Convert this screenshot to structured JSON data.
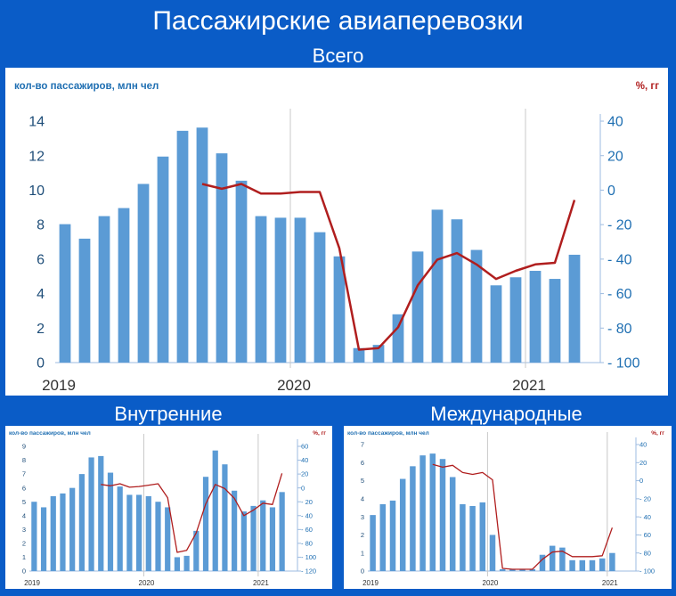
{
  "page": {
    "title": "Пассажирские авиаперевозки",
    "sections": {
      "total": "Всего",
      "domestic": "Внутренние",
      "international": "Международные"
    }
  },
  "colors": {
    "background": "#0a5cc7",
    "bar": "#5b9bd5",
    "line": "#b01e1e",
    "axis_text_left": "#1f4e79",
    "axis_text_right": "#1f6fb2"
  },
  "chart_data": [
    {
      "id": "total",
      "type": "bar+line",
      "ylabel": "кол-во пассажиров, млн чел",
      "y2label": "%, гг",
      "ylim": [
        0,
        15
      ],
      "yticks": [
        "0",
        "2",
        "4",
        "6",
        "8",
        "10",
        "12",
        "14"
      ],
      "y2lim": [
        -100,
        50
      ],
      "y2ticks": [
        "- 100",
        "- 80",
        "- 60",
        "- 40",
        "- 20",
        "0",
        "20",
        "40"
      ],
      "xticks": [
        {
          "label": "2019",
          "index": 0
        },
        {
          "label": "2020",
          "index": 12
        },
        {
          "label": "2021",
          "index": 24
        }
      ],
      "series": [
        {
          "kind": "bar",
          "values": [
            8.6,
            7.7,
            9.1,
            9.6,
            11.1,
            12.8,
            14.4,
            14.6,
            13.0,
            11.3,
            9.1,
            9.0,
            9.0,
            8.1,
            6.6,
            0.9,
            1.1,
            3.0,
            6.9,
            9.5,
            8.9,
            7.0,
            4.8,
            5.3,
            5.7,
            5.2,
            6.7
          ]
        },
        {
          "kind": "line",
          "values": [
            null,
            null,
            null,
            null,
            null,
            null,
            null,
            11,
            8,
            11,
            5,
            5,
            6,
            6,
            -29,
            -92,
            -91,
            -78,
            -52,
            -36,
            -32,
            -39,
            -48,
            -43,
            -39,
            -38,
            1
          ]
        }
      ]
    },
    {
      "id": "domestic",
      "type": "bar+line",
      "ylabel": "кол-во пассажиров, млн чел",
      "y2label": "%, гг",
      "ylim": [
        0,
        9
      ],
      "yticks": [
        "0",
        "1",
        "2",
        "3",
        "4",
        "5",
        "6",
        "7",
        "8",
        "9"
      ],
      "y2lim": [
        -120,
        60
      ],
      "y2ticks": [
        "- 120",
        "- 100",
        "- 80",
        "- 60",
        "- 40",
        "- 20",
        "0",
        "20",
        "40",
        "60"
      ],
      "xticks": [
        {
          "label": "2019",
          "index": 0
        },
        {
          "label": "2020",
          "index": 12
        },
        {
          "label": "2021",
          "index": 24
        }
      ],
      "series": [
        {
          "kind": "bar",
          "values": [
            5.0,
            4.6,
            5.4,
            5.6,
            6.0,
            7.0,
            8.2,
            8.3,
            7.1,
            6.1,
            5.5,
            5.5,
            5.4,
            5.0,
            4.6,
            1.0,
            1.1,
            2.9,
            6.8,
            8.7,
            7.7,
            5.8,
            4.3,
            4.7,
            5.1,
            4.6,
            5.7
          ]
        },
        {
          "kind": "line",
          "values": [
            null,
            null,
            null,
            null,
            null,
            null,
            null,
            5,
            3,
            6,
            1,
            2,
            4,
            6,
            -14,
            -93,
            -90,
            -65,
            -23,
            5,
            -1,
            -15,
            -40,
            -32,
            -22,
            -24,
            21
          ]
        }
      ]
    },
    {
      "id": "international",
      "type": "bar+line",
      "ylabel": "кол-во пассажиров, млн чел",
      "y2label": "%, гг",
      "ylim": [
        0,
        7
      ],
      "yticks": [
        "0",
        "1",
        "2",
        "3",
        "4",
        "5",
        "6",
        "7"
      ],
      "y2lim": [
        -100,
        40
      ],
      "y2ticks": [
        "- 100",
        "- 80",
        "- 60",
        "- 40",
        "- 20",
        "0",
        "20",
        "40"
      ],
      "xticks": [
        {
          "label": "2019",
          "index": 0
        },
        {
          "label": "2020",
          "index": 12
        },
        {
          "label": "2021",
          "index": 24
        }
      ],
      "series": [
        {
          "kind": "bar",
          "values": [
            3.1,
            3.7,
            3.9,
            5.1,
            5.8,
            6.4,
            6.5,
            6.2,
            5.2,
            3.7,
            3.6,
            3.8,
            2.0,
            0.1,
            0.1,
            0.1,
            0.1,
            0.9,
            1.4,
            1.3,
            0.6,
            0.6,
            0.6,
            0.7,
            1.0
          ]
        },
        {
          "kind": "line",
          "values": [
            null,
            null,
            null,
            null,
            null,
            null,
            18,
            15,
            17,
            9,
            7,
            9,
            1,
            -97,
            -98,
            -98,
            -98,
            -87,
            -79,
            -78,
            -84,
            -84,
            -84,
            -83,
            -52
          ]
        }
      ]
    }
  ]
}
